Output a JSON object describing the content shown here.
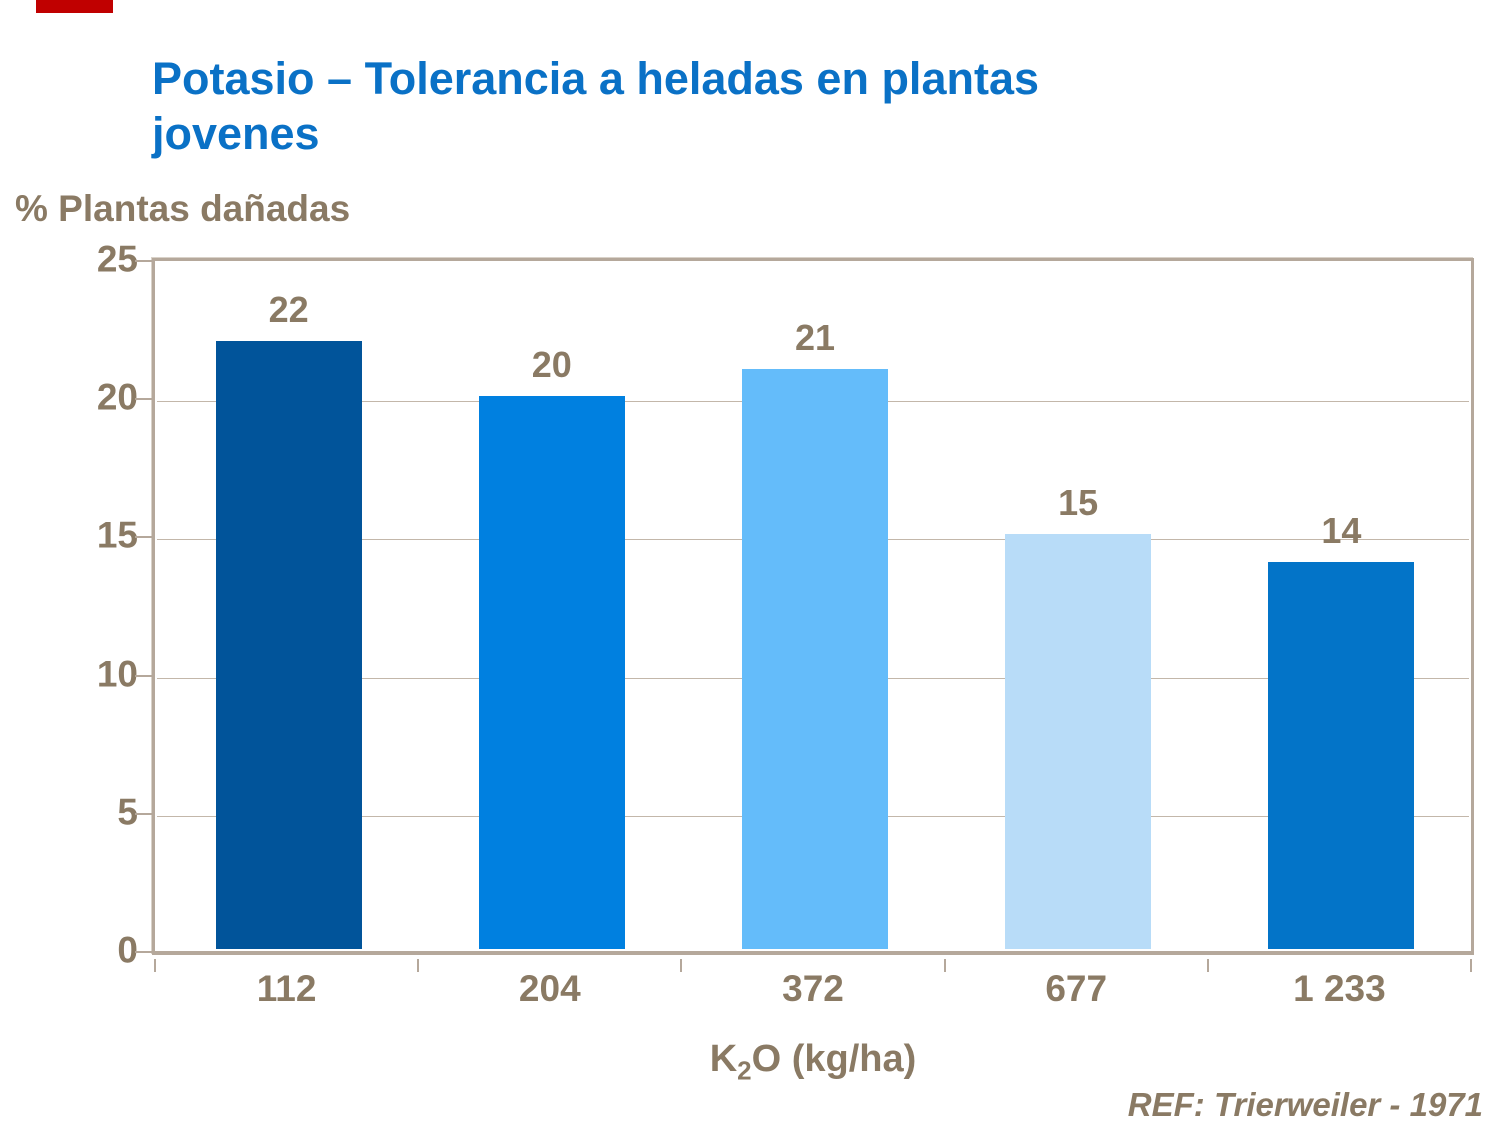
{
  "slide": {
    "accent_bar_color": "#C00000",
    "title_lines": [
      "Potasio – Tolerancia a heladas en plantas",
      "jovenes"
    ],
    "title_color": "#0A71C6",
    "text_color": "#8A7A64",
    "ref_note": "REF: Trierweiler - 1971"
  },
  "chart_data": {
    "type": "bar",
    "title": "Potasio – Tolerancia a heladas en plantas jovenes",
    "ylabel": "% Plantas dañadas",
    "xlabel": "K2O (kg/ha)",
    "xlabel_parts": {
      "base": "K",
      "sub": "2",
      "rest": "O (kg/ha)"
    },
    "categories": [
      "112",
      "204",
      "372",
      "677",
      "1 233"
    ],
    "values": [
      22,
      20,
      21,
      15,
      14
    ],
    "bar_colors": [
      "#01549A",
      "#0080E0",
      "#64BCFA",
      "#B8DCF8",
      "#0374C8"
    ],
    "ylim": [
      0,
      25
    ],
    "yticks": [
      25,
      20,
      15,
      10,
      5,
      0
    ],
    "gridline_values": [
      20,
      15,
      10,
      5
    ],
    "grid": true,
    "legend": "none",
    "label_color": "#8A7A64",
    "frame_color": "#B5A89B",
    "gridline_color": "#C3B7AA",
    "source_note": "REF: Trierweiler - 1971"
  }
}
